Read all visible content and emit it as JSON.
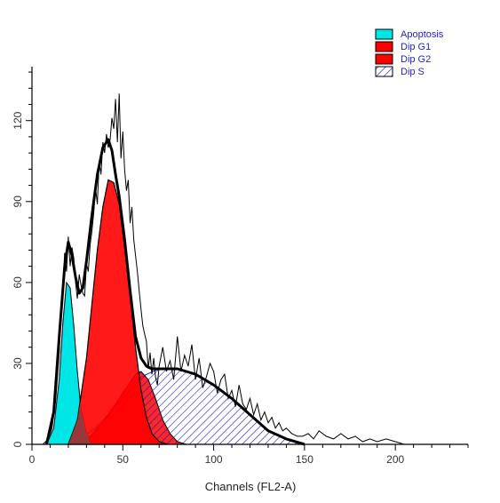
{
  "chart_data": {
    "type": "area",
    "xlabel": "Channels (FL2-A)",
    "ylabel": "",
    "xlim": [
      0,
      240
    ],
    "ylim": [
      0,
      140
    ],
    "x_ticks": [
      0,
      50,
      100,
      150,
      200
    ],
    "y_ticks": [
      0,
      30,
      60,
      90,
      120
    ],
    "x_tick_labels": [
      "0",
      "50",
      "100",
      "150",
      "200"
    ],
    "y_tick_labels": [
      "0",
      "30",
      "60",
      "90",
      "120"
    ],
    "grid": false,
    "legend_position": "top-right",
    "series": [
      {
        "name": "Apoptosis",
        "color": "#00e5e5",
        "fill": "solid",
        "x": [
          8,
          12,
          15,
          17,
          19,
          21,
          23,
          25,
          27,
          30,
          33
        ],
        "y": [
          0,
          6,
          24,
          45,
          60,
          58,
          44,
          27,
          13,
          4,
          0
        ]
      },
      {
        "name": "Dip G1",
        "color": "#ff0000",
        "fill": "solid",
        "x": [
          20,
          25,
          30,
          33,
          36,
          39,
          42,
          45,
          48,
          51,
          54,
          57,
          60,
          63,
          66,
          70,
          75
        ],
        "y": [
          0,
          9,
          32,
          52,
          72,
          88,
          98,
          97,
          89,
          73,
          55,
          36,
          20,
          10,
          4,
          1,
          0
        ]
      },
      {
        "name": "Dip G2",
        "color": "#ff0000",
        "fill": "solid",
        "x": [
          24,
          32,
          40,
          45,
          50,
          54,
          57,
          60,
          64,
          68,
          72,
          76,
          80,
          85
        ],
        "y": [
          0,
          3,
          9,
          14,
          19,
          23,
          26,
          27,
          24,
          17,
          9,
          4,
          1,
          0
        ]
      },
      {
        "name": "Dip S",
        "color": "#1a1acc",
        "fill": "diagonal-hatch",
        "x": [
          22,
          35,
          50,
          60,
          70,
          80,
          90,
          100,
          110,
          120,
          130,
          140,
          145,
          150
        ],
        "y": [
          0,
          6,
          17,
          25,
          28,
          28,
          26,
          22,
          17,
          11,
          5,
          2,
          1,
          0
        ]
      },
      {
        "name": "",
        "color": "#000000",
        "fill": "none",
        "role": "fit",
        "x": [
          8,
          12,
          15,
          18,
          20,
          22,
          24,
          26,
          28,
          30,
          33,
          36,
          39,
          42,
          44,
          46,
          48,
          51,
          54,
          57,
          60,
          63,
          66,
          70,
          75,
          80,
          90,
          100,
          110,
          120,
          130,
          140,
          150
        ],
        "y": [
          0,
          12,
          40,
          66,
          75,
          70,
          62,
          56,
          58,
          68,
          85,
          100,
          110,
          113,
          109,
          100,
          92,
          76,
          57,
          40,
          32,
          29,
          28,
          28,
          28,
          28,
          26,
          22,
          17,
          11,
          5,
          2,
          0
        ]
      },
      {
        "name": "",
        "color": "#000000",
        "fill": "none",
        "role": "raw",
        "x": [
          6,
          9,
          11,
          13,
          15,
          16,
          17,
          18,
          19,
          20,
          21,
          22,
          23,
          24,
          25,
          26,
          27,
          28,
          29,
          30,
          31,
          32,
          33,
          34,
          35,
          36,
          37,
          38,
          39,
          40,
          41,
          42,
          43,
          44,
          45,
          46,
          47,
          48,
          49,
          50,
          51,
          52,
          53,
          54,
          55,
          56,
          57,
          58,
          59,
          60,
          61,
          62,
          63,
          64,
          65,
          66,
          67,
          68,
          69,
          70,
          72,
          74,
          76,
          78,
          80,
          82,
          84,
          86,
          88,
          90,
          92,
          94,
          96,
          98,
          100,
          102,
          104,
          106,
          108,
          110,
          112,
          114,
          116,
          118,
          120,
          122,
          124,
          126,
          128,
          130,
          132,
          134,
          136,
          138,
          140,
          143,
          146,
          149,
          152,
          155,
          158,
          162,
          166,
          170,
          174,
          178,
          182,
          186,
          190,
          195,
          200,
          205
        ],
        "y": [
          0,
          2,
          6,
          16,
          34,
          48,
          58,
          71,
          64,
          77,
          66,
          73,
          69,
          60,
          54,
          63,
          59,
          56,
          55,
          67,
          64,
          74,
          79,
          86,
          95,
          89,
          105,
          100,
          112,
          108,
          115,
          110,
          113,
          121,
          117,
          128,
          112,
          130,
          106,
          116,
          102,
          94,
          98,
          82,
          88,
          76,
          70,
          64,
          57,
          50,
          44,
          41,
          38,
          28,
          34,
          26,
          32,
          25,
          22,
          29,
          36,
          27,
          31,
          24,
          40,
          27,
          33,
          29,
          37,
          24,
          32,
          21,
          25,
          30,
          27,
          19,
          24,
          26,
          17,
          20,
          14,
          22,
          15,
          13,
          17,
          11,
          15,
          9,
          12,
          8,
          10,
          6,
          8,
          5,
          6,
          4,
          3,
          3,
          4,
          2,
          5,
          3,
          2,
          4,
          2,
          3,
          1,
          2,
          1,
          2,
          1,
          0
        ]
      }
    ]
  }
}
